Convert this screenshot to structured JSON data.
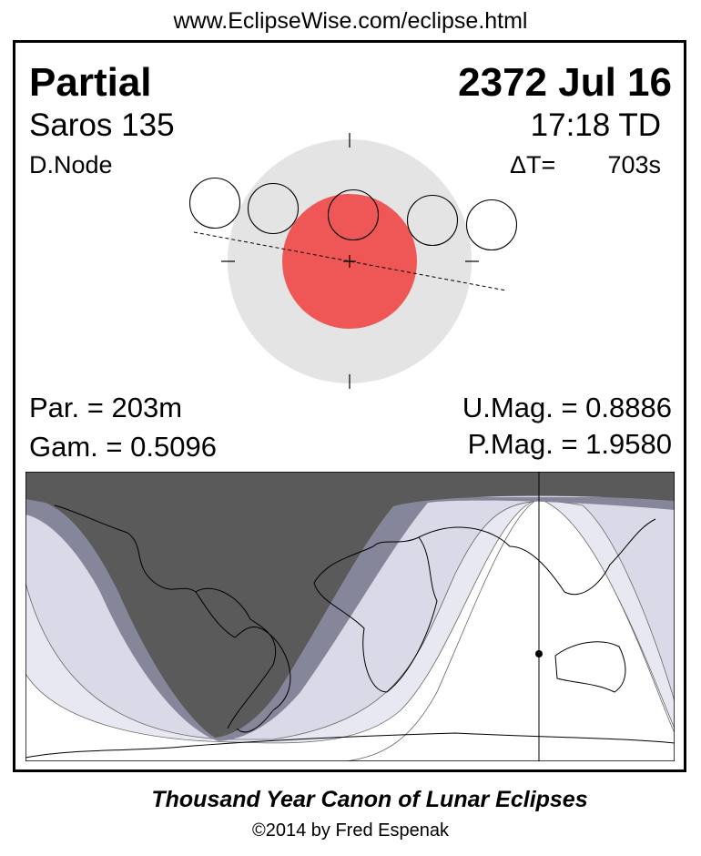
{
  "url": "www.EclipseWise.com/eclipse.html",
  "eclipse": {
    "type": "Partial",
    "date": "2372 Jul 16",
    "saros": "Saros 135",
    "time": "17:18 TD",
    "node": "D.Node",
    "delta_t_label": "ΔT=",
    "delta_t_value": "703s"
  },
  "stats": {
    "partial_duration": "Par. = 203m",
    "gamma": "Gam. = 0.5096",
    "umbral_magnitude": "U.Mag. = 0.8886",
    "penumbral_magnitude": "P.Mag. = 1.9580"
  },
  "colors": {
    "penumbra": "#e4e4e4",
    "umbra": "#ef5656",
    "night_no_eclipse": "#5a5a5a",
    "penumbral_band": "#86869a",
    "partial_visibility": "#d9d9e7",
    "end_visibility": "#e8e8f2"
  },
  "footer": {
    "title": "Thousand Year Canon of Lunar Eclipses",
    "copyright": "©2014 by Fred Espenak"
  }
}
